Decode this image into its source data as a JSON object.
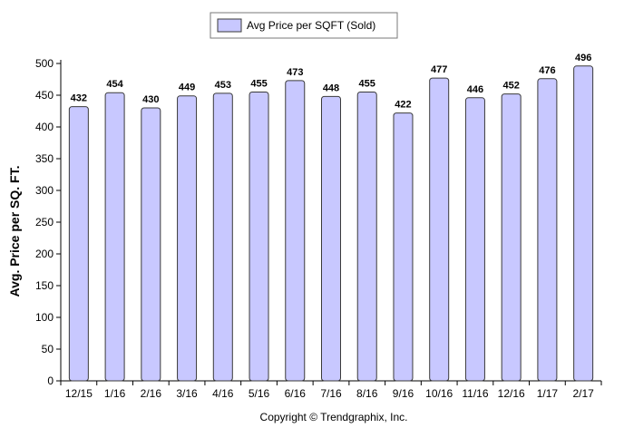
{
  "chart_data": {
    "type": "bar",
    "categories": [
      "12/15",
      "1/16",
      "2/16",
      "3/16",
      "4/16",
      "5/16",
      "6/16",
      "7/16",
      "8/16",
      "9/16",
      "10/16",
      "11/16",
      "12/16",
      "1/17",
      "2/17"
    ],
    "series": [
      {
        "name": "Avg Price per SQFT (Sold)",
        "values": [
          432,
          454,
          430,
          449,
          453,
          455,
          473,
          448,
          455,
          422,
          477,
          446,
          452,
          476,
          496
        ],
        "color": "#c8c8ff",
        "stroke": "#3a3a3a"
      }
    ],
    "ylabel": "Avg. Price per SQ. FT.",
    "xlabel": "",
    "ylim": [
      0,
      500
    ],
    "yticks": [
      0,
      50,
      100,
      150,
      200,
      250,
      300,
      350,
      400,
      450,
      500
    ],
    "grid": false,
    "legend_position": "top-center",
    "data_labels": true
  },
  "footer": {
    "copyright": "Copyright © Trendgraphix, Inc."
  }
}
